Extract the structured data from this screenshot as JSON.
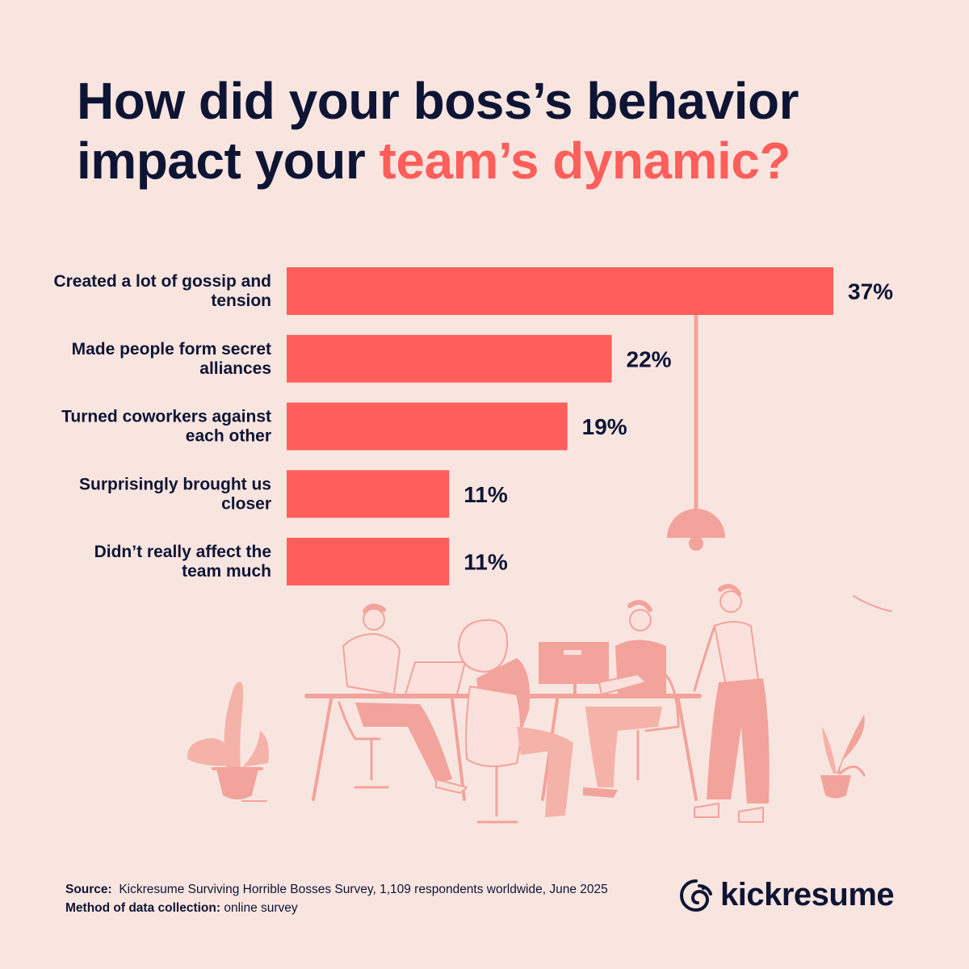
{
  "title": {
    "line1": "How did your boss’s behavior",
    "line2_plain": "impact your ",
    "line2_accent": "team’s dynamic?"
  },
  "colors": {
    "background": "#F9E5E0",
    "bar": "#FF5E5B",
    "text": "#0E1534",
    "illustration_dark": "#F2A39B",
    "illustration_light": "#FBE0DB"
  },
  "chart_data": {
    "type": "bar",
    "orientation": "horizontal",
    "categories": [
      [
        "Created a lot of gossip and",
        "tension"
      ],
      [
        "Made people form secret",
        "alliances"
      ],
      [
        "Turned coworkers against",
        "each other"
      ],
      [
        "Surprisingly brought us",
        "closer"
      ],
      [
        "Didn’t really affect the",
        "team much"
      ]
    ],
    "values": [
      37,
      22,
      19,
      11,
      11
    ],
    "value_labels": [
      "37%",
      "22%",
      "19%",
      "11%",
      "11%"
    ],
    "xlim": [
      0,
      37
    ],
    "grid": false,
    "legend": "none"
  },
  "footer": {
    "source_label": "Source:",
    "source_text": "Kickresume Surviving Horrible Bosses Survey, 1,109 respondents worldwide, June 2025",
    "method_label": "Method of data collection:",
    "method_text": "online survey"
  },
  "brand": {
    "name": "kickresume",
    "logo_icon": "kickresume-logo-icon"
  }
}
